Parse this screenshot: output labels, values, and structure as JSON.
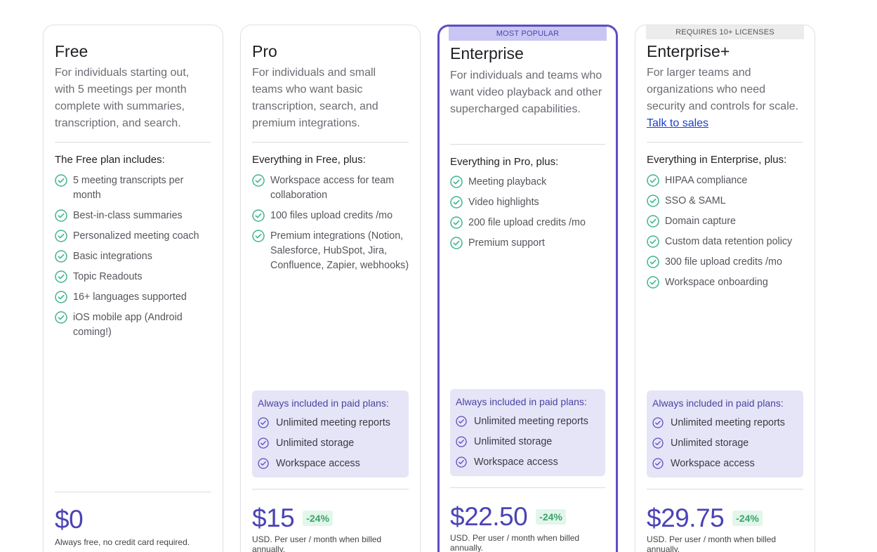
{
  "colors": {
    "accent": "#4b43b5",
    "check_green": "#3fb58a",
    "check_purple": "#5b4fc2",
    "discount_bg": "#e2f6ea",
    "discount_text": "#3aa46c",
    "paid_box_bg": "#e6e5f7"
  },
  "plans": [
    {
      "name": "Free",
      "description": "For individuals starting out, with 5 meetings per month complete with summaries, transcription, and search.",
      "includes_title": "The Free plan includes:",
      "features": [
        "5 meeting transcripts per month",
        "Best-in-class summaries",
        "Personalized meeting coach",
        "Basic integrations",
        "Topic Readouts",
        "16+ languages supported",
        "iOS mobile app (Android coming!)"
      ],
      "price": "$0",
      "price_note": "Always free, no credit card required."
    },
    {
      "name": "Pro",
      "description": "For individuals and small teams who want basic transcription, search, and premium integrations.",
      "includes_title": "Everything in Free, plus:",
      "features": [
        "Workspace access for team collaboration",
        "100 files upload credits /mo",
        "Premium integrations (Notion, Salesforce, HubSpot, Jira, Confluence, Zapier, webhooks)"
      ],
      "paid_box": {
        "title": "Always included in paid plans:",
        "items": [
          "Unlimited meeting reports",
          "Unlimited storage",
          "Workspace access"
        ]
      },
      "price": "$15",
      "discount": "-24%",
      "price_note": "USD. Per user / month when billed annually."
    },
    {
      "ribbon": "MOST POPULAR",
      "name": "Enterprise",
      "description": "For individuals and teams who want video playback and other supercharged capabilities.",
      "includes_title": "Everything in Pro, plus:",
      "features": [
        "Meeting playback",
        "Video highlights",
        "200 file upload credits /mo",
        "Premium support"
      ],
      "paid_box": {
        "title": "Always included in paid plans:",
        "items": [
          "Unlimited meeting reports",
          "Unlimited storage",
          "Workspace access"
        ]
      },
      "price": "$22.50",
      "discount": "-24%",
      "price_note": "USD. Per user / month when billed annually."
    },
    {
      "ribbon": "REQUIRES 10+ LICENSES",
      "name": "Enterprise+",
      "description": "For larger teams and organizations who need security and controls for scale.",
      "description_link": "Talk to sales",
      "includes_title": "Everything in Enterprise, plus:",
      "features": [
        "HIPAA compliance",
        "SSO & SAML",
        "Domain capture",
        "Custom data retention policy",
        "300 file upload credits /mo",
        "Workspace onboarding"
      ],
      "paid_box": {
        "title": "Always included in paid plans:",
        "items": [
          "Unlimited meeting reports",
          "Unlimited storage",
          "Workspace access"
        ]
      },
      "price": "$29.75",
      "discount": "-24%",
      "price_note": "USD. Per user / month when billed annually."
    }
  ]
}
